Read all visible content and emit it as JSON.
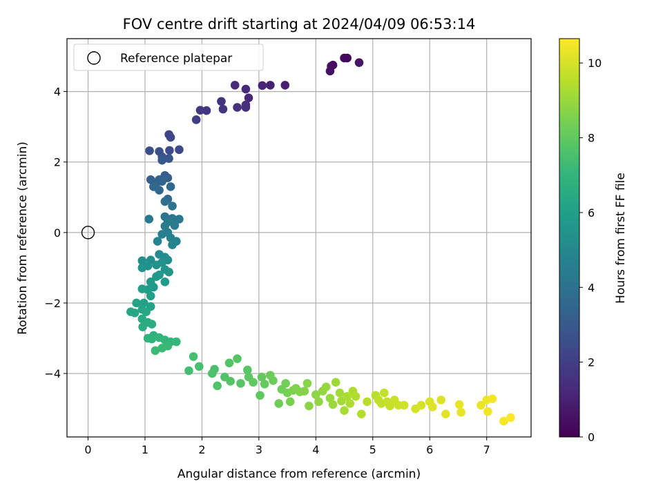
{
  "chart_data": {
    "type": "scatter",
    "title": "FOV centre drift starting at 2024/04/09 06:53:14",
    "xlabel": "Angular distance from reference (arcmin)",
    "ylabel": "Rotation from reference (arcmin)",
    "xlim": [
      -0.37,
      7.78
    ],
    "ylim": [
      -5.8,
      5.5
    ],
    "xticks": [
      0,
      1,
      2,
      3,
      4,
      5,
      6,
      7
    ],
    "yticks": [
      -4,
      -2,
      0,
      2,
      4
    ],
    "grid": true,
    "legend": {
      "position": "top-left",
      "entries": [
        "Reference platepar"
      ]
    },
    "reference_point": {
      "x": 0,
      "y": 0,
      "label": "Reference platepar"
    },
    "colorbar": {
      "label": "Hours from first FF file",
      "min": 0,
      "max": 10.65,
      "ticks": [
        0,
        2,
        4,
        6,
        8,
        10
      ],
      "colormap": "viridis",
      "colors": [
        "#440154",
        "#482878",
        "#3e4989",
        "#31688e",
        "#26828e",
        "#1f9e89",
        "#35b779",
        "#6ece58",
        "#b5de2b",
        "#fde725"
      ]
    },
    "points": [
      [
        4.3,
        4.75,
        0.2
      ],
      [
        4.5,
        4.95,
        0.3
      ],
      [
        4.55,
        4.95,
        0.25
      ],
      [
        4.27,
        4.72,
        0.4
      ],
      [
        4.25,
        4.58,
        0.5
      ],
      [
        4.76,
        4.82,
        0.6
      ],
      [
        3.46,
        4.18,
        0.9
      ],
      [
        3.2,
        4.18,
        1.0
      ],
      [
        3.06,
        4.17,
        1.1
      ],
      [
        2.82,
        3.82,
        1.2
      ],
      [
        2.77,
        4.07,
        1.25
      ],
      [
        2.58,
        4.18,
        1.3
      ],
      [
        2.77,
        3.62,
        1.4
      ],
      [
        2.77,
        3.55,
        1.45
      ],
      [
        2.62,
        3.55,
        1.5
      ],
      [
        2.34,
        3.72,
        1.6
      ],
      [
        2.37,
        3.5,
        1.65
      ],
      [
        2.08,
        3.46,
        1.7
      ],
      [
        1.97,
        3.47,
        1.8
      ],
      [
        1.9,
        3.2,
        1.9
      ],
      [
        1.42,
        2.78,
        2.2
      ],
      [
        1.45,
        2.7,
        2.3
      ],
      [
        1.6,
        2.35,
        2.4
      ],
      [
        1.43,
        2.33,
        2.5
      ],
      [
        1.08,
        2.32,
        2.6
      ],
      [
        1.25,
        2.3,
        2.7
      ],
      [
        1.3,
        2.15,
        2.8
      ],
      [
        1.42,
        2.1,
        2.9
      ],
      [
        1.3,
        2.05,
        3.0
      ],
      [
        1.35,
        1.62,
        3.1
      ],
      [
        1.4,
        1.55,
        3.2
      ],
      [
        1.1,
        1.5,
        3.3
      ],
      [
        1.25,
        1.5,
        3.35
      ],
      [
        1.3,
        1.45,
        3.4
      ],
      [
        1.2,
        1.4,
        3.45
      ],
      [
        1.15,
        1.3,
        3.5
      ],
      [
        1.45,
        1.3,
        3.55
      ],
      [
        1.25,
        1.2,
        3.6
      ],
      [
        1.4,
        0.95,
        3.8
      ],
      [
        1.35,
        0.88,
        3.9
      ],
      [
        1.48,
        0.75,
        4.0
      ],
      [
        1.35,
        0.45,
        4.1
      ],
      [
        1.48,
        0.4,
        4.2
      ],
      [
        1.6,
        0.38,
        4.25
      ],
      [
        1.07,
        0.38,
        4.3
      ],
      [
        1.4,
        0.3,
        4.35
      ],
      [
        1.35,
        0.18,
        4.4
      ],
      [
        1.52,
        0.2,
        4.45
      ],
      [
        1.4,
        0.0,
        4.55
      ],
      [
        1.3,
        -0.05,
        4.6
      ],
      [
        1.45,
        -0.15,
        4.7
      ],
      [
        1.55,
        -0.25,
        4.75
      ],
      [
        1.22,
        -0.25,
        4.8
      ],
      [
        1.48,
        -0.35,
        4.85
      ],
      [
        1.25,
        -0.62,
        5.1
      ],
      [
        1.35,
        -0.7,
        5.15
      ],
      [
        1.4,
        -0.78,
        5.2
      ],
      [
        1.1,
        -0.78,
        5.25
      ],
      [
        0.95,
        -0.8,
        5.3
      ],
      [
        1.3,
        -0.85,
        5.35
      ],
      [
        1.2,
        -0.92,
        5.4
      ],
      [
        1.05,
        -0.95,
        5.45
      ],
      [
        0.95,
        -1.0,
        5.5
      ],
      [
        1.35,
        -1.05,
        5.55
      ],
      [
        1.42,
        -1.12,
        5.6
      ],
      [
        1.25,
        -1.2,
        5.65
      ],
      [
        1.2,
        -1.25,
        5.7
      ],
      [
        1.35,
        -1.4,
        5.75
      ],
      [
        1.1,
        -1.4,
        5.8
      ],
      [
        1.15,
        -1.55,
        5.85
      ],
      [
        1.05,
        -1.62,
        5.9
      ],
      [
        0.95,
        -1.6,
        5.95
      ],
      [
        1.1,
        -1.8,
        6.0
      ],
      [
        0.98,
        -2.0,
        6.05
      ],
      [
        0.85,
        -2.0,
        6.1
      ],
      [
        1.1,
        -2.1,
        6.15
      ],
      [
        0.95,
        -2.18,
        6.2
      ],
      [
        0.75,
        -2.25,
        6.3
      ],
      [
        0.82,
        -2.28,
        6.35
      ],
      [
        1.02,
        -2.25,
        6.4
      ],
      [
        0.95,
        -2.45,
        6.5
      ],
      [
        1.05,
        -2.55,
        6.55
      ],
      [
        1.12,
        -2.6,
        6.6
      ],
      [
        0.96,
        -2.68,
        6.65
      ],
      [
        1.15,
        -2.92,
        6.8
      ],
      [
        1.05,
        -3.0,
        6.85
      ],
      [
        1.12,
        -3.02,
        6.9
      ],
      [
        1.25,
        -2.98,
        6.95
      ],
      [
        1.35,
        -3.05,
        7.0
      ],
      [
        1.45,
        -3.1,
        7.05
      ],
      [
        1.55,
        -3.1,
        7.1
      ],
      [
        1.4,
        -3.22,
        7.15
      ],
      [
        1.3,
        -3.28,
        7.2
      ],
      [
        1.18,
        -3.35,
        7.25
      ],
      [
        1.77,
        -3.92,
        7.4
      ],
      [
        1.85,
        -3.52,
        7.45
      ],
      [
        1.95,
        -3.8,
        7.5
      ],
      [
        2.22,
        -3.88,
        7.55
      ],
      [
        2.18,
        -4.0,
        7.6
      ],
      [
        2.27,
        -4.35,
        7.65
      ],
      [
        2.4,
        -4.1,
        7.7
      ],
      [
        2.48,
        -3.7,
        7.72
      ],
      [
        2.5,
        -4.22,
        7.75
      ],
      [
        2.62,
        -3.58,
        7.78
      ],
      [
        2.68,
        -4.28,
        7.8
      ],
      [
        2.8,
        -3.9,
        7.85
      ],
      [
        2.82,
        -4.1,
        7.9
      ],
      [
        2.9,
        -4.25,
        7.95
      ],
      [
        3.02,
        -4.62,
        8.0
      ],
      [
        3.05,
        -4.1,
        8.05
      ],
      [
        3.1,
        -4.3,
        8.1
      ],
      [
        3.2,
        -4.05,
        8.15
      ],
      [
        3.25,
        -4.2,
        8.2
      ],
      [
        3.35,
        -4.85,
        8.25
      ],
      [
        3.4,
        -4.45,
        8.3
      ],
      [
        3.47,
        -4.28,
        8.35
      ],
      [
        3.5,
        -4.55,
        8.4
      ],
      [
        3.55,
        -4.8,
        8.45
      ],
      [
        3.6,
        -4.48,
        8.5
      ],
      [
        3.65,
        -4.42,
        8.55
      ],
      [
        3.72,
        -4.52,
        8.6
      ],
      [
        3.8,
        -4.5,
        8.65
      ],
      [
        3.85,
        -4.28,
        8.7
      ],
      [
        3.88,
        -4.92,
        8.75
      ],
      [
        4.0,
        -4.6,
        8.8
      ],
      [
        4.05,
        -4.8,
        8.85
      ],
      [
        4.12,
        -4.5,
        8.9
      ],
      [
        4.18,
        -4.38,
        8.95
      ],
      [
        4.25,
        -4.7,
        9.0
      ],
      [
        4.3,
        -4.88,
        9.05
      ],
      [
        4.35,
        -4.25,
        9.1
      ],
      [
        4.42,
        -4.55,
        9.15
      ],
      [
        4.45,
        -4.78,
        9.2
      ],
      [
        4.5,
        -5.05,
        9.25
      ],
      [
        4.55,
        -4.65,
        9.3
      ],
      [
        4.6,
        -4.85,
        9.32
      ],
      [
        4.65,
        -4.5,
        9.35
      ],
      [
        4.7,
        -4.65,
        9.4
      ],
      [
        4.8,
        -5.15,
        9.45
      ],
      [
        4.9,
        -4.8,
        9.5
      ],
      [
        5.05,
        -4.62,
        9.55
      ],
      [
        5.1,
        -4.75,
        9.6
      ],
      [
        5.15,
        -4.85,
        9.65
      ],
      [
        5.2,
        -4.55,
        9.7
      ],
      [
        5.25,
        -4.8,
        9.72
      ],
      [
        5.3,
        -4.92,
        9.75
      ],
      [
        5.38,
        -4.75,
        9.8
      ],
      [
        5.45,
        -4.9,
        9.85
      ],
      [
        5.55,
        -4.9,
        9.9
      ],
      [
        5.75,
        -5.0,
        9.95
      ],
      [
        5.85,
        -4.9,
        10.0
      ],
      [
        6.0,
        -4.8,
        10.05
      ],
      [
        6.05,
        -4.95,
        10.1
      ],
      [
        6.2,
        -4.75,
        10.15
      ],
      [
        6.28,
        -5.15,
        10.2
      ],
      [
        6.52,
        -4.88,
        10.25
      ],
      [
        6.55,
        -5.1,
        10.3
      ],
      [
        6.9,
        -4.9,
        10.35
      ],
      [
        7.0,
        -4.75,
        10.4
      ],
      [
        7.02,
        -5.08,
        10.45
      ],
      [
        7.1,
        -4.72,
        10.5
      ],
      [
        7.3,
        -5.35,
        10.55
      ],
      [
        7.42,
        -5.25,
        10.6
      ]
    ]
  }
}
